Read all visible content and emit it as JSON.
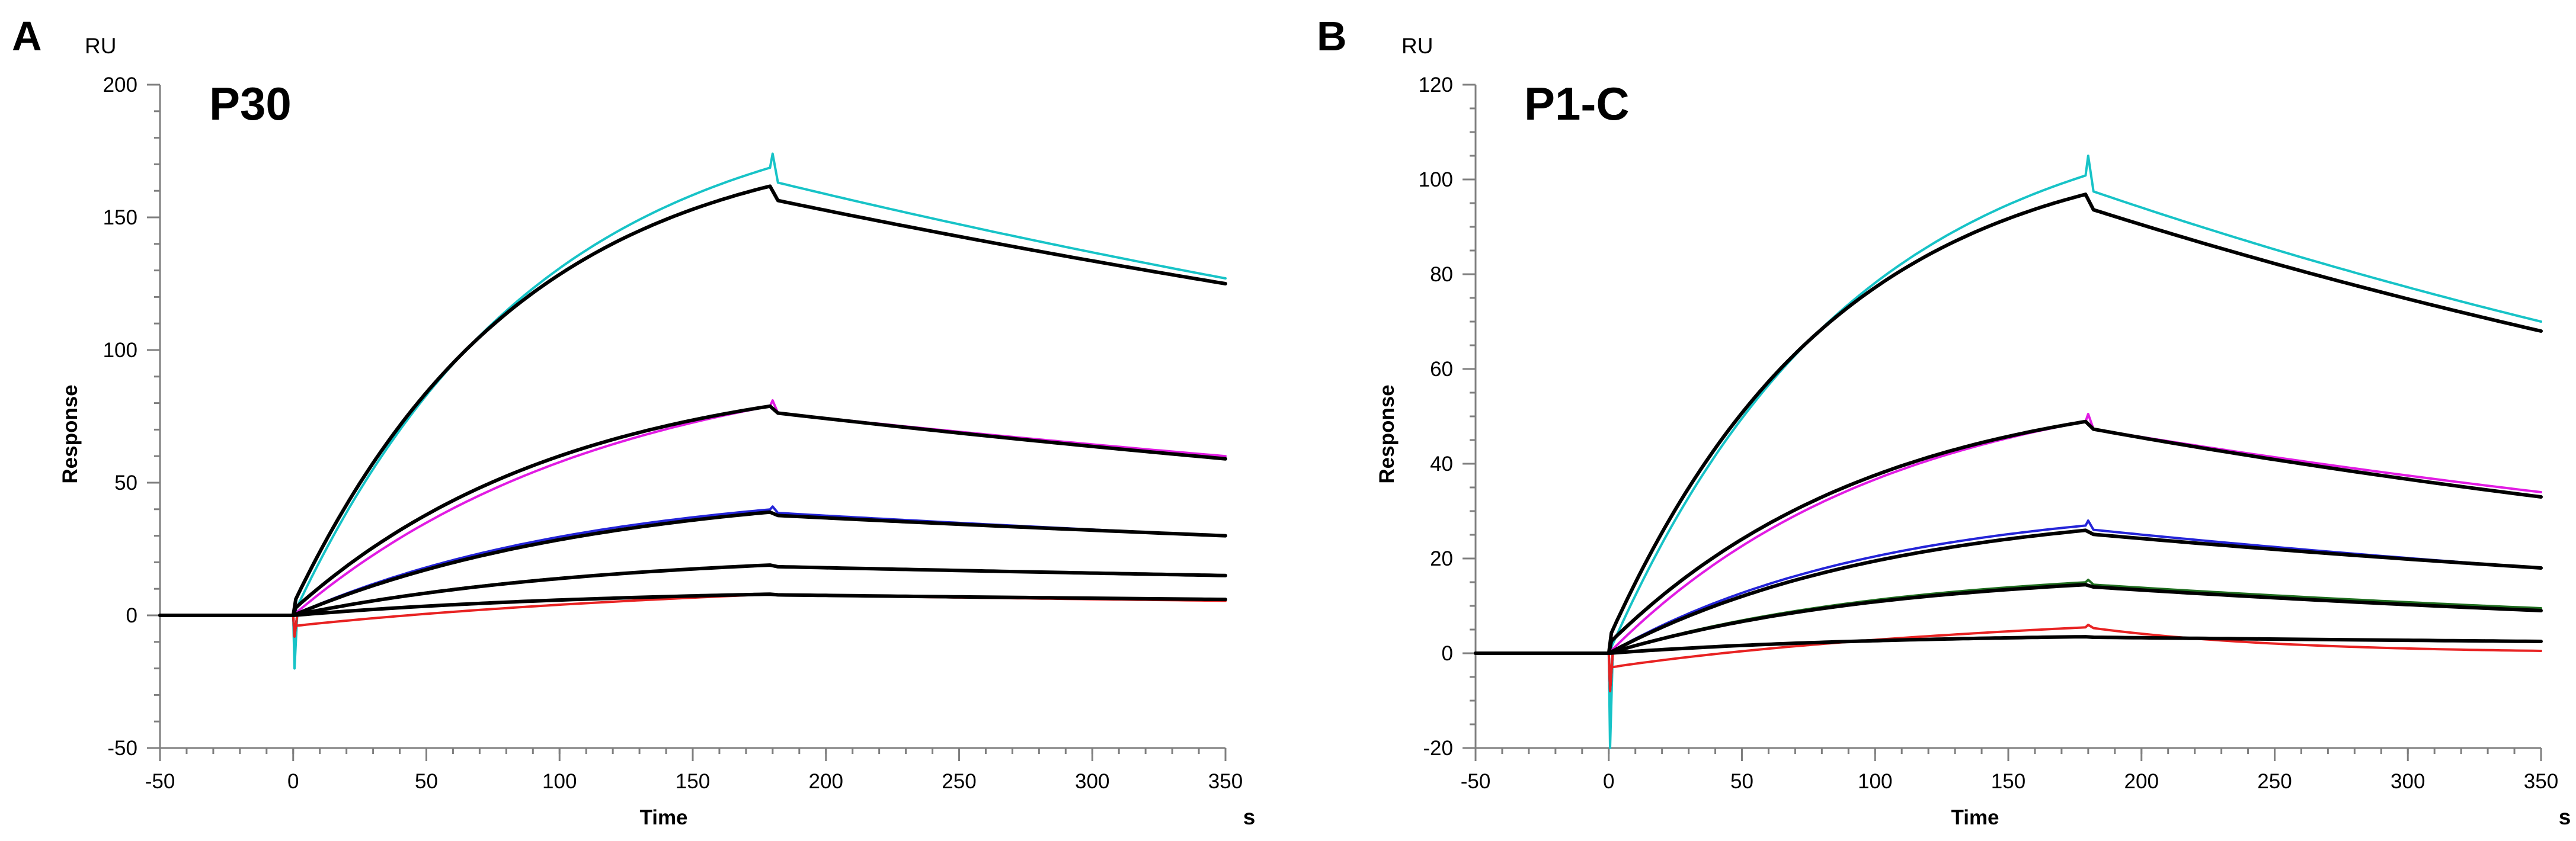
{
  "figure": {
    "panels": [
      {
        "letter": "A",
        "title": "P30",
        "unit_label": "RU",
        "x_unit": "s",
        "xlabel": "Time",
        "ylabel": "Response",
        "xlim": [
          -50,
          350
        ],
        "ylim": [
          -50,
          200
        ],
        "xticks": [
          -50,
          0,
          50,
          100,
          150,
          200,
          250,
          300,
          350
        ],
        "yticks": [
          -50,
          0,
          50,
          100,
          150,
          200
        ],
        "y_minor_step": 10,
        "x_minor_step": 10
      },
      {
        "letter": "B",
        "title": "P1-C",
        "unit_label": "RU",
        "x_unit": "s",
        "xlabel": "Time",
        "ylabel": "Response",
        "xlim": [
          -50,
          350
        ],
        "ylim": [
          -20,
          120
        ],
        "xticks": [
          -50,
          0,
          50,
          100,
          150,
          200,
          250,
          300,
          350
        ],
        "yticks": [
          -20,
          0,
          20,
          40,
          60,
          80,
          100,
          120
        ],
        "y_minor_step": 5,
        "x_minor_step": 10
      }
    ]
  },
  "chart_data": [
    {
      "type": "line",
      "title": "P30",
      "xlabel": "Time",
      "ylabel": "Response",
      "x_unit": "s",
      "y_unit": "RU",
      "xlim": [
        -50,
        350
      ],
      "ylim": [
        -50,
        200
      ],
      "model": {
        "association_end": 180,
        "dissociation_end": 350
      },
      "series": [
        {
          "name": "cyan (measured)",
          "color": "#17c3c7",
          "width": 4,
          "plateau": 169,
          "kon_rate": 0.011,
          "end_value": 127,
          "start_jump": 0,
          "assoc_offset": 0,
          "spike": 5
        },
        {
          "name": "magenta (measured)",
          "color": "#e11be3",
          "width": 4,
          "plateau": 79,
          "kon_rate": 0.0085,
          "end_value": 60,
          "start_jump": 0,
          "assoc_offset": 0,
          "spike": 2
        },
        {
          "name": "blue (measured)",
          "color": "#2424d8",
          "width": 4,
          "plateau": 40,
          "kon_rate": 0.009,
          "end_value": 30,
          "start_jump": 0,
          "assoc_offset": 0,
          "spike": 1
        },
        {
          "name": "green (measured)",
          "color": "#1f6e1f",
          "width": 4,
          "plateau": 19,
          "kon_rate": 0.009,
          "end_value": 15,
          "start_jump": 0,
          "assoc_offset": 0,
          "spike": 0
        },
        {
          "name": "red (measured)",
          "color": "#e82222",
          "width": 4,
          "plateau": 8,
          "kon_rate": 0.008,
          "end_value": 5.5,
          "start_jump": -4,
          "assoc_offset": 0,
          "spike": 0
        },
        {
          "name": "fit 1",
          "color": "#000000",
          "width": 6,
          "plateau": 162,
          "kon_rate": 0.0115,
          "end_value": 125,
          "start_jump": 4,
          "assoc_offset": 0,
          "spike": 0
        },
        {
          "name": "fit 2",
          "color": "#000000",
          "width": 6,
          "plateau": 79,
          "kon_rate": 0.0095,
          "end_value": 59,
          "start_jump": 2,
          "assoc_offset": 0,
          "spike": 0
        },
        {
          "name": "fit 3",
          "color": "#000000",
          "width": 6,
          "plateau": 39,
          "kon_rate": 0.0085,
          "end_value": 30,
          "start_jump": 0,
          "assoc_offset": 0,
          "spike": 0
        },
        {
          "name": "fit 4",
          "color": "#000000",
          "width": 6,
          "plateau": 19,
          "kon_rate": 0.0085,
          "end_value": 15,
          "start_jump": 0,
          "assoc_offset": 0,
          "spike": 0
        },
        {
          "name": "fit 5",
          "color": "#000000",
          "width": 6,
          "plateau": 8,
          "kon_rate": 0.008,
          "end_value": 6,
          "start_jump": 0,
          "assoc_offset": 0,
          "spike": 0
        }
      ]
    },
    {
      "type": "line",
      "title": "P1-C",
      "xlabel": "Time",
      "ylabel": "Response",
      "x_unit": "s",
      "y_unit": "RU",
      "xlim": [
        -50,
        350
      ],
      "ylim": [
        -20,
        120
      ],
      "model": {
        "association_end": 180,
        "dissociation_end": 350
      },
      "series": [
        {
          "name": "cyan (measured)",
          "color": "#17c3c7",
          "width": 4,
          "plateau": 101,
          "kon_rate": 0.011,
          "end_value": 70,
          "start_jump": 0,
          "assoc_offset": 0,
          "spike": 4
        },
        {
          "name": "magenta (measured)",
          "color": "#e11be3",
          "width": 4,
          "plateau": 49,
          "kon_rate": 0.0095,
          "end_value": 34,
          "start_jump": 0,
          "assoc_offset": 0,
          "spike": 1.5
        },
        {
          "name": "blue (measured)",
          "color": "#2424d8",
          "width": 4,
          "plateau": 27,
          "kon_rate": 0.01,
          "end_value": 18,
          "start_jump": 0,
          "assoc_offset": 0,
          "spike": 1
        },
        {
          "name": "green (measured)",
          "color": "#1f6e1f",
          "width": 4,
          "plateau": 15,
          "kon_rate": 0.0095,
          "end_value": 9.5,
          "start_jump": 0,
          "assoc_offset": 0,
          "spike": 0.5
        },
        {
          "name": "red (measured)",
          "color": "#e82222",
          "width": 4,
          "plateau": 5.5,
          "kon_rate": 0.01,
          "end_value": 0.5,
          "start_jump": -3,
          "assoc_offset": 0,
          "spike": 0.5
        },
        {
          "name": "fit 1",
          "color": "#000000",
          "width": 6,
          "plateau": 97,
          "kon_rate": 0.0115,
          "end_value": 68,
          "start_jump": 3,
          "assoc_offset": 0,
          "spike": 0
        },
        {
          "name": "fit 2",
          "color": "#000000",
          "width": 6,
          "plateau": 49,
          "kon_rate": 0.0095,
          "end_value": 33,
          "start_jump": 2,
          "assoc_offset": 0,
          "spike": 0
        },
        {
          "name": "fit 3",
          "color": "#000000",
          "width": 6,
          "plateau": 26,
          "kon_rate": 0.0095,
          "end_value": 18,
          "start_jump": 0,
          "assoc_offset": 0,
          "spike": 0
        },
        {
          "name": "fit 4",
          "color": "#000000",
          "width": 6,
          "plateau": 14.5,
          "kon_rate": 0.0095,
          "end_value": 9,
          "start_jump": 0,
          "assoc_offset": 0,
          "spike": 0
        },
        {
          "name": "fit 5",
          "color": "#000000",
          "width": 6,
          "plateau": 3.5,
          "kon_rate": 0.01,
          "end_value": 2.5,
          "start_jump": 0,
          "assoc_offset": 0,
          "spike": 0
        }
      ]
    }
  ]
}
